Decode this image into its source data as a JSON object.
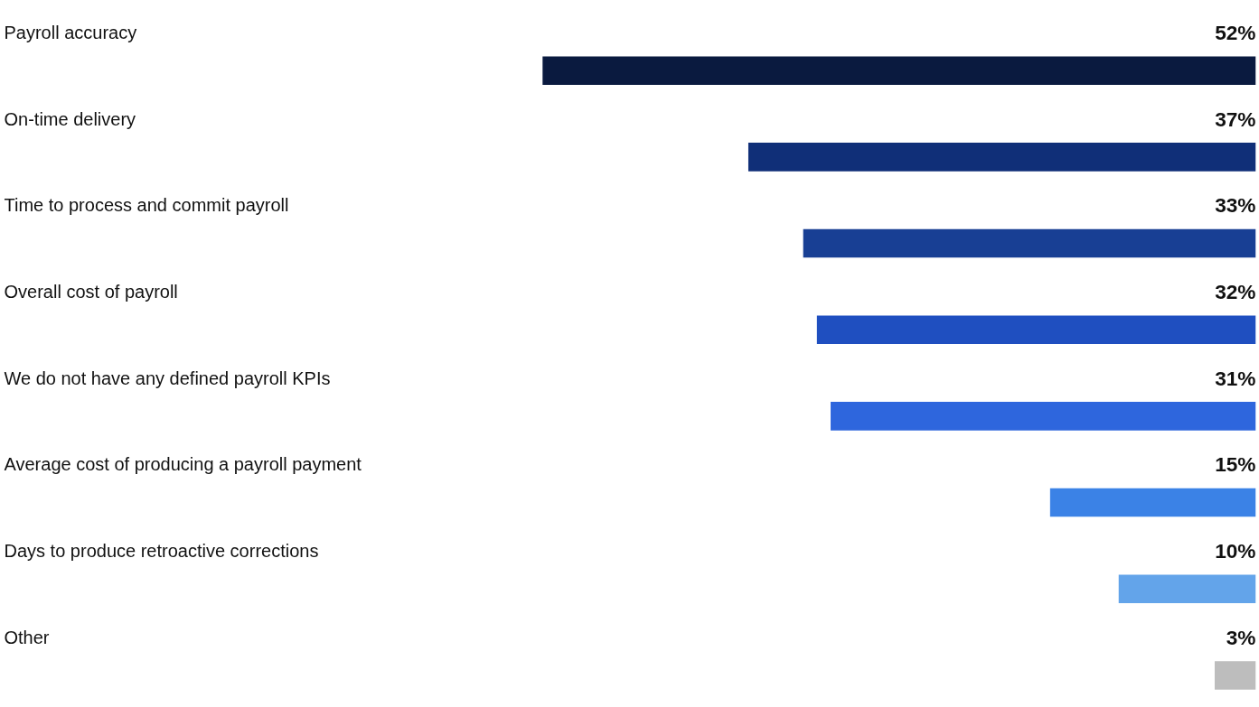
{
  "chart_data": {
    "type": "bar",
    "orientation": "horizontal",
    "categories": [
      "Payroll accuracy",
      "On-time delivery",
      "Time to process and commit payroll",
      "Overall cost of payroll",
      "We do not have any defined payroll KPIs",
      "Average cost of producing a payroll payment",
      "Days to produce retroactive corrections",
      "Other"
    ],
    "values": [
      52,
      37,
      33,
      32,
      31,
      15,
      10,
      3
    ],
    "colors": [
      "#0a1a3f",
      "#102f78",
      "#183f94",
      "#1f4fc0",
      "#2e66dd",
      "#3b82e6",
      "#63a4ea",
      "#bdbdbd"
    ],
    "value_labels": [
      "52%",
      "37%",
      "33%",
      "32%",
      "31%",
      "15%",
      "10%",
      "3%"
    ],
    "tick_labels": false
  }
}
